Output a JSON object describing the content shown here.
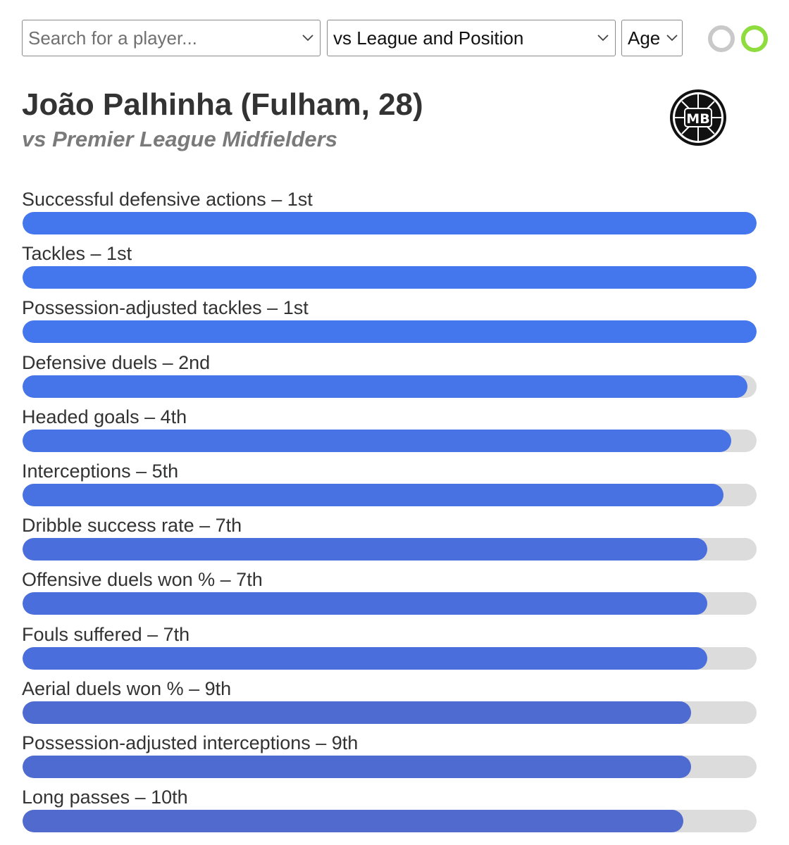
{
  "controls": {
    "search": {
      "placeholder": "Search for a player..."
    },
    "comparison": {
      "selected": "vs League and Position"
    },
    "age": {
      "selected": "Age"
    },
    "toggles": [
      {
        "name": "toggle-off",
        "color": "#c9c9c9"
      },
      {
        "name": "toggle-on",
        "color": "#8fdc3f"
      }
    ]
  },
  "header": {
    "title": "João Palhinha (Fulham, 28)",
    "subtitle": "vs Premier League Midfielders",
    "logo_text": "MB"
  },
  "metrics": [
    {
      "label": "Successful defensive actions – 1st",
      "value": 1.0,
      "color": "#4477ee"
    },
    {
      "label": "Tackles – 1st",
      "value": 1.0,
      "color": "#4477ee"
    },
    {
      "label": "Possession-adjusted tackles – 1st",
      "value": 1.0,
      "color": "#4477ee"
    },
    {
      "label": "Defensive duels – 2nd",
      "value": 0.988,
      "color": "#4675e9"
    },
    {
      "label": "Headed goals – 4th",
      "value": 0.965,
      "color": "#4773e4"
    },
    {
      "label": "Interceptions – 5th",
      "value": 0.955,
      "color": "#4871e1"
    },
    {
      "label": "Dribble success rate – 7th",
      "value": 0.933,
      "color": "#4a6edb"
    },
    {
      "label": "Offensive duels won % – 7th",
      "value": 0.933,
      "color": "#4a6edb"
    },
    {
      "label": "Fouls suffered – 7th",
      "value": 0.933,
      "color": "#4a6edb"
    },
    {
      "label": "Aerial duels won % – 9th",
      "value": 0.911,
      "color": "#4e6bd2"
    },
    {
      "label": "Possession-adjusted interceptions – 9th",
      "value": 0.911,
      "color": "#4e6bd2"
    },
    {
      "label": "Long passes – 10th",
      "value": 0.9,
      "color": "#506ace"
    }
  ]
}
